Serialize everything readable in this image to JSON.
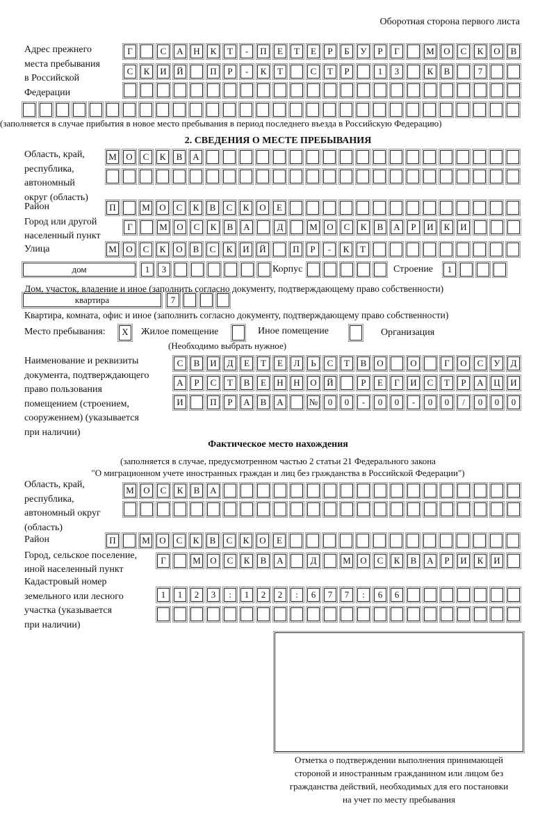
{
  "header": "Оборотная сторона первого листа",
  "prev_address": {
    "label": [
      "Адрес прежнего",
      "места пребывания",
      "в Российской",
      "Федерации"
    ],
    "rows": [
      [
        "Г",
        "",
        "С",
        "А",
        "Н",
        "К",
        "Т",
        "-",
        "П",
        "Е",
        "Т",
        "Е",
        "Р",
        "Б",
        "У",
        "Р",
        "Г",
        "",
        "М",
        "О",
        "С",
        "К",
        "О",
        "В"
      ],
      [
        "С",
        "К",
        "И",
        "Й",
        "",
        "П",
        "Р",
        "-",
        "К",
        "Т",
        "",
        "С",
        "Т",
        "Р",
        "",
        "1",
        "3",
        "",
        "К",
        "В",
        "",
        "7",
        "",
        ""
      ],
      []
    ],
    "extra_row": [],
    "note": "(заполняется в случае прибытия в новое место пребывания в период последнего въезда в Российскую Федерацию)"
  },
  "section2": {
    "title": "2. СВЕДЕНИЯ О МЕСТЕ ПРЕБЫВАНИЯ",
    "region_label": [
      "Область, край,",
      "республика,",
      "автономный",
      "округ (область)"
    ],
    "region_rows": [
      [
        "М",
        "О",
        "С",
        "К",
        "В",
        "А"
      ],
      []
    ],
    "district_label": "Район",
    "district": [
      "П",
      "",
      "М",
      "О",
      "С",
      "К",
      "В",
      "С",
      "К",
      "О",
      "Е"
    ],
    "city_label": [
      "Город или другой",
      "населенный пункт"
    ],
    "city": [
      "Г",
      "",
      "М",
      "О",
      "С",
      "К",
      "В",
      "А",
      "",
      "Д",
      "",
      "М",
      "О",
      "С",
      "К",
      "В",
      "А",
      "Р",
      "И",
      "К",
      "И"
    ],
    "street_label": "Улица",
    "street": [
      "М",
      "О",
      "С",
      "К",
      "О",
      "В",
      "С",
      "К",
      "И",
      "Й",
      "",
      "П",
      "Р",
      "-",
      "К",
      "Т"
    ],
    "house_type": "дом",
    "house": [
      "1",
      "3"
    ],
    "korpus_label": "Корпус",
    "korpus": [],
    "building_label": "Строение",
    "building": [
      "1"
    ],
    "house_note": "Дом, участок, владение и иное (заполнить согласно документу, подтверждающему право собственности)",
    "apt_type": "квартира",
    "apt": [
      "7"
    ],
    "apt_note": "Квартира, комната, офис и иное (заполнить согласно документу, подтверждающему право собственности)",
    "stay_label": "Место пребывания:",
    "stay_options": [
      {
        "label": "Жилое помещение",
        "mark": "X"
      },
      {
        "label": "Иное помещение",
        "mark": ""
      },
      {
        "label": "Организация",
        "mark": ""
      }
    ],
    "stay_note": "(Необходимо выбрать нужное)",
    "doc_label": [
      "Наименование и реквизиты",
      "документа, подтверждающего",
      "право пользования",
      "помещением (строением,",
      "сооружением) (указывается",
      "при наличии)"
    ],
    "doc_rows": [
      [
        "С",
        "В",
        "И",
        "Д",
        "Е",
        "Т",
        "Е",
        "Л",
        "Ь",
        "С",
        "Т",
        "В",
        "О",
        "",
        "О",
        "",
        "Г",
        "О",
        "С",
        "У",
        "Д"
      ],
      [
        "А",
        "Р",
        "С",
        "Т",
        "В",
        "Е",
        "Н",
        "Н",
        "О",
        "Й",
        "",
        "Р",
        "Е",
        "Г",
        "И",
        "С",
        "Т",
        "Р",
        "А",
        "Ц",
        "И"
      ],
      [
        "И",
        "",
        "П",
        "Р",
        "А",
        "В",
        "А",
        "",
        "№",
        "0",
        "0",
        "-",
        "0",
        "0",
        "-",
        "0",
        "0",
        "/",
        "0",
        "0",
        "0"
      ]
    ]
  },
  "actual": {
    "title": "Фактическое место нахождения",
    "note": [
      "(заполняется в случае, предусмотренном частью 2 статьи 21 Федерального закона",
      "\"О миграционном учете иностранных граждан и лиц без гражданства в Российской Федерации\")"
    ],
    "region_label": [
      "Область, край,",
      "республика,",
      "автономный округ",
      "(область)"
    ],
    "region_rows": [
      [
        "М",
        "О",
        "С",
        "К",
        "В",
        "А"
      ],
      []
    ],
    "district_label": "Район",
    "district": [
      "П",
      "",
      "М",
      "О",
      "С",
      "К",
      "В",
      "С",
      "К",
      "О",
      "Е"
    ],
    "city_label": [
      "Город, сельское поселение,",
      "иной населенный пункт"
    ],
    "city": [
      "Г",
      "",
      "М",
      "О",
      "С",
      "К",
      "В",
      "А",
      "",
      "Д",
      "",
      "М",
      "О",
      "С",
      "К",
      "В",
      "А",
      "Р",
      "И",
      "К",
      "И"
    ],
    "cadastre_label": [
      "Кадастровый номер",
      "земельного или лесного",
      "участка (указывается",
      "при наличии)"
    ],
    "cadastre_rows": [
      [
        "1",
        "1",
        "2",
        "3",
        ":",
        "1",
        "2",
        "2",
        ":",
        "6",
        "7",
        "7",
        ":",
        "6",
        "6"
      ],
      []
    ]
  },
  "stamp_caption": [
    "Отметка о подтверждении выполнения принимающей",
    "стороной и иностранным гражданином или лицом без",
    "гражданства действий, необходимых для его постановки",
    "на учет по месту пребывания"
  ]
}
